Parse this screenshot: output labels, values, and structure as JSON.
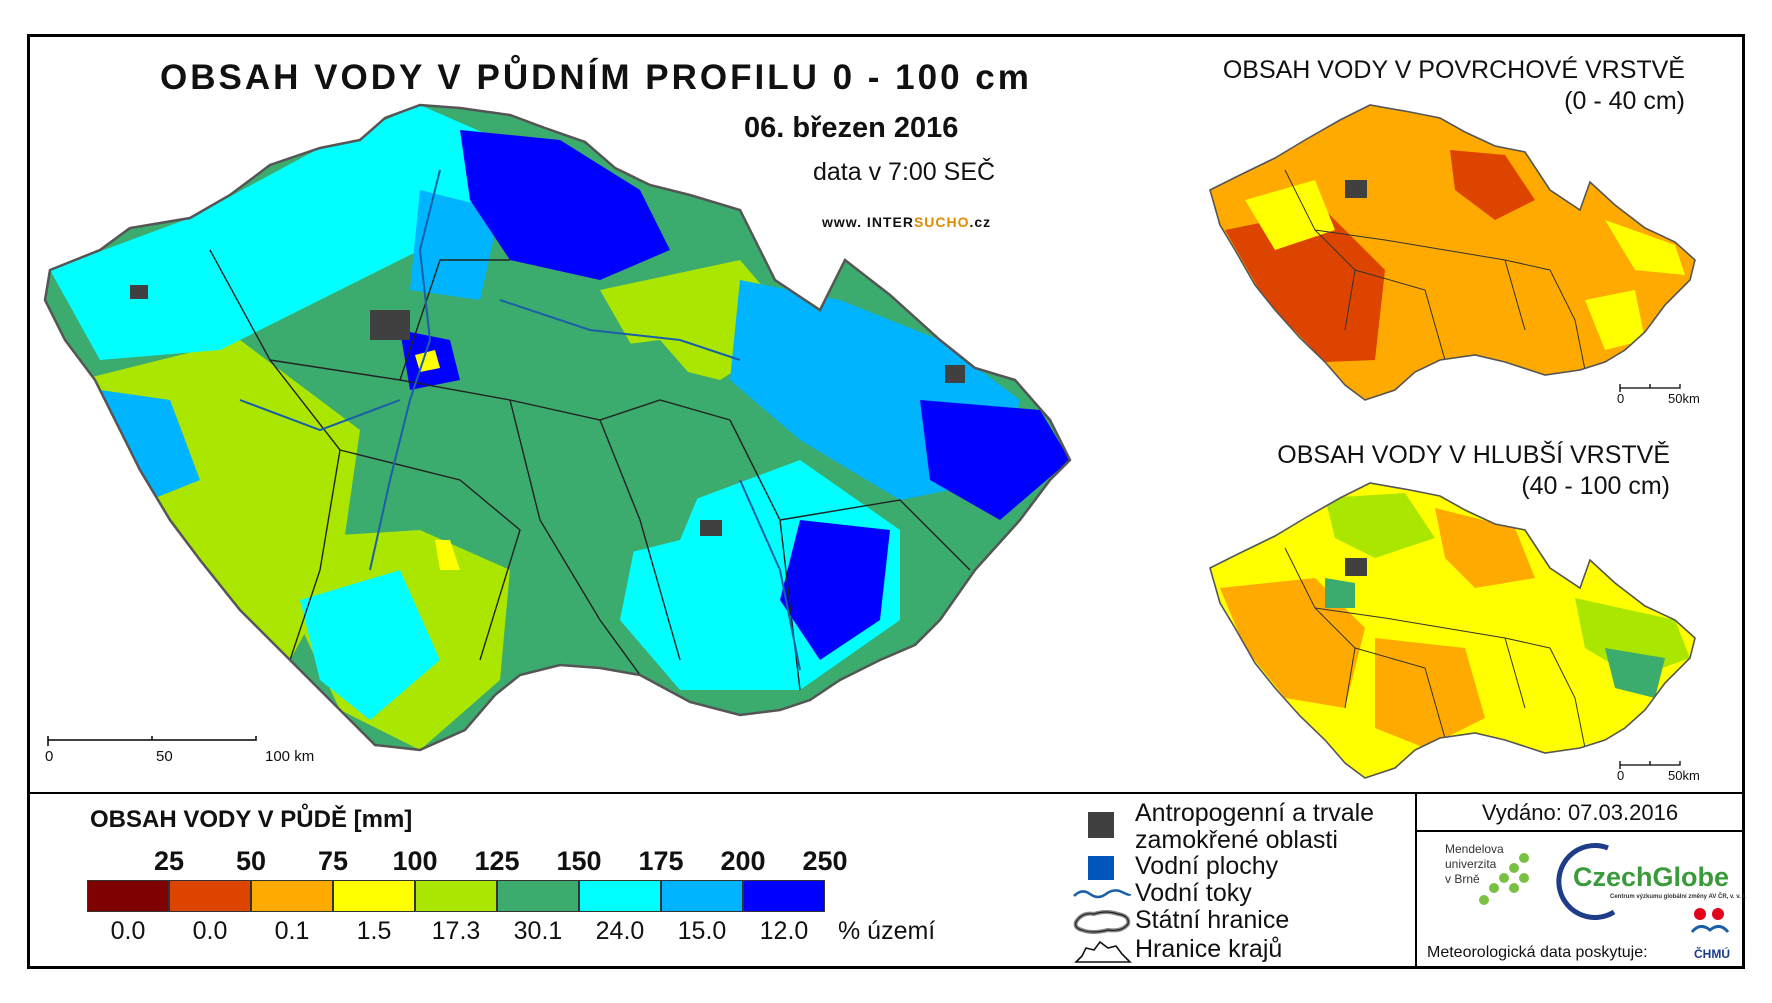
{
  "main_map": {
    "title": "OBSAH VODY V PŮDNÍM PROFILU 0 - 100 cm",
    "date": "06. březen 2016",
    "time_note": "data v 7:00 SEČ",
    "website_prefix": "www. INTER",
    "website_highlight": "SUCHO",
    "website_suffix": ".cz",
    "scale": {
      "tick_0": "0",
      "tick_1": "50",
      "tick_2": "100 km"
    }
  },
  "inset_top": {
    "title_line1": "OBSAH VODY V POVRCHOVÉ VRSTVĚ",
    "title_line2": "(0 - 40 cm)",
    "scale": {
      "tick_0": "0",
      "tick_1": "50km"
    }
  },
  "inset_bottom": {
    "title_line1": "OBSAH VODY V HLUBŠÍ VRSTVĚ",
    "title_line2": "(40 - 100 cm)",
    "scale": {
      "tick_0": "0",
      "tick_1": "50km"
    }
  },
  "legend": {
    "title": "OBSAH VODY V PŮDĚ [mm]",
    "unit_label": "% území",
    "classes": [
      {
        "upper": "25",
        "percent": "0.0",
        "color": "#7f0000"
      },
      {
        "upper": "50",
        "percent": "0.0",
        "color": "#dd4400"
      },
      {
        "upper": "75",
        "percent": "0.1",
        "color": "#ffaa00"
      },
      {
        "upper": "100",
        "percent": "1.5",
        "color": "#ffff00"
      },
      {
        "upper": "125",
        "percent": "17.3",
        "color": "#aae600"
      },
      {
        "upper": "150",
        "percent": "30.1",
        "color": "#3cab6e"
      },
      {
        "upper": "175",
        "percent": "24.0",
        "color": "#00ffff"
      },
      {
        "upper": "200",
        "percent": "15.0",
        "color": "#00b4ff"
      },
      {
        "upper": "250",
        "percent": "12.0",
        "color": "#0000ff"
      }
    ],
    "symbols": {
      "anthropogenic_line1": "Antropogenní a trvale",
      "anthropogenic_line2": "zamokřené oblasti",
      "water_bodies": "Vodní plochy",
      "rivers": "Vodní toky",
      "state_border": "Státní hranice",
      "region_border": "Hranice krajů"
    }
  },
  "footer": {
    "issued": "Vydáno: 07.03.2016",
    "mendel_line1": "Mendelova",
    "mendel_line2": "univerzita",
    "mendel_line3": "v Brně",
    "czechglobe": "CzechGlobe",
    "czechglobe_sub": "Centrum výzkumu globální změny AV ČR, v. v. i.",
    "met_data": "Meteorologická data poskytuje:",
    "chmu": "ČHMÚ"
  }
}
